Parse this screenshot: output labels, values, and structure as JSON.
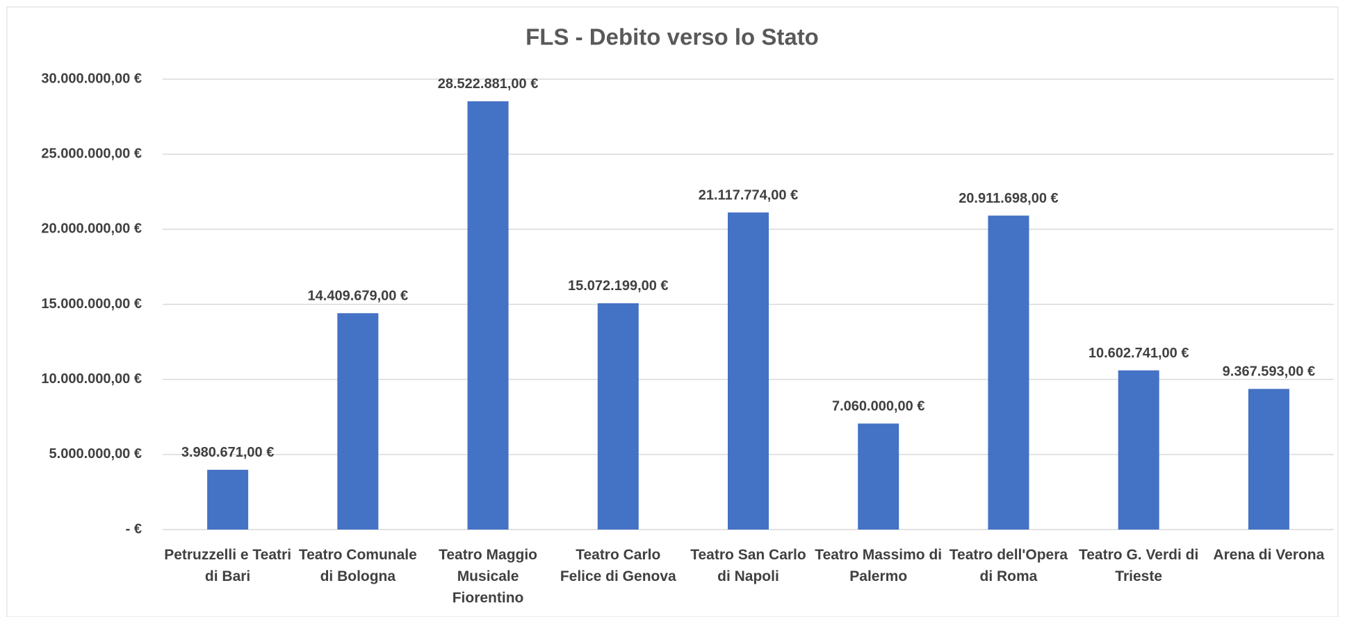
{
  "chart_data": {
    "type": "bar",
    "title": "FLS - Debito verso lo Stato",
    "categories": [
      "Petruzzelli e Teatri di Bari",
      "Teatro Comunale di Bologna",
      "Teatro Maggio Musicale Fiorentino",
      "Teatro Carlo Felice di Genova",
      "Teatro San Carlo di Napoli",
      "Teatro Massimo di Palermo",
      "Teatro dell'Opera di Roma",
      "Teatro G. Verdi di Trieste",
      "Arena di Verona"
    ],
    "values": [
      3980671,
      14409679,
      28522881,
      15072199,
      21117774,
      7060000,
      20911698,
      10602741,
      9367593
    ],
    "value_labels": [
      "3.980.671,00 €",
      "14.409.679,00 €",
      "28.522.881,00 €",
      "15.072.199,00 €",
      "21.117.774,00 €",
      "7.060.000,00 €",
      "20.911.698,00 €",
      "10.602.741,00 €",
      "9.367.593,00 €"
    ],
    "color": "#4472c4",
    "ylim": [
      0,
      30000000
    ],
    "yticks": [
      {
        "value": 0,
        "label": "-  €"
      },
      {
        "value": 5000000,
        "label": "5.000.000,00 €"
      },
      {
        "value": 10000000,
        "label": "10.000.000,00 €"
      },
      {
        "value": 15000000,
        "label": "15.000.000,00 €"
      },
      {
        "value": 20000000,
        "label": "20.000.000,00 €"
      },
      {
        "value": 25000000,
        "label": "25.000.000,00 €"
      },
      {
        "value": 30000000,
        "label": "30.000.000,00 €"
      }
    ],
    "grid": true
  }
}
